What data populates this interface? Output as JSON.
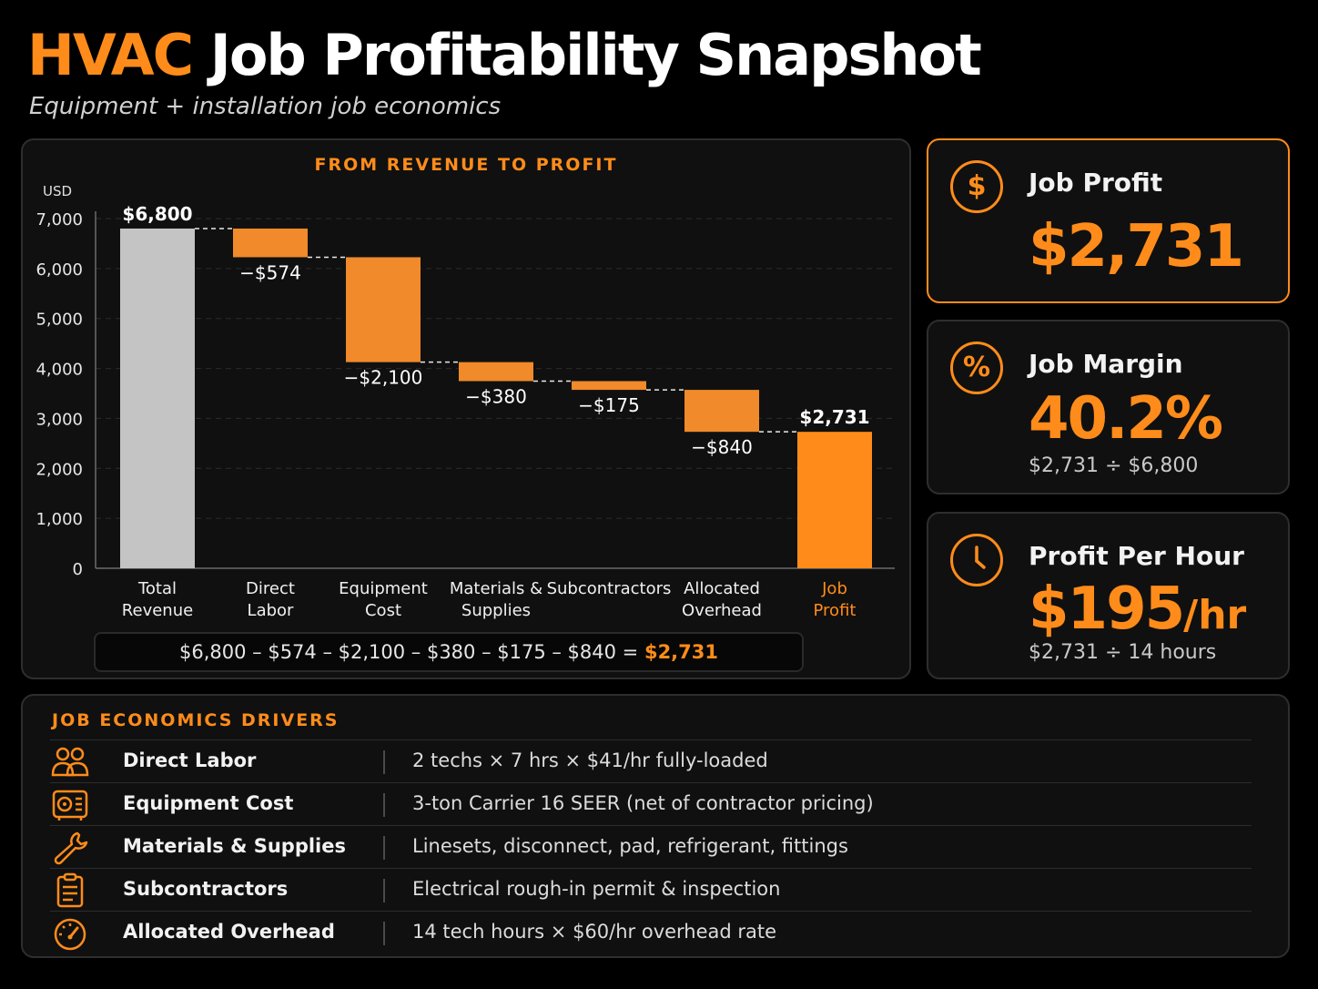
{
  "header": {
    "title_accent": "HVAC",
    "title_rest": "Job Profitability Snapshot",
    "subtitle": "Equipment + installation job economics"
  },
  "chart_data": {
    "type": "waterfall",
    "title": "FROM REVENUE TO PROFIT",
    "ylabel": "USD",
    "ylim": [
      0,
      7000
    ],
    "yticks": [
      0,
      1000,
      2000,
      3000,
      4000,
      5000,
      6000,
      7000
    ],
    "ytick_labels": [
      "0",
      "1,000",
      "2,000",
      "3,000",
      "4,000",
      "5,000",
      "6,000",
      "7,000"
    ],
    "grid": true,
    "steps": [
      {
        "category": [
          "Total",
          "Revenue"
        ],
        "kind": "total",
        "value": 6800,
        "label": "$6,800",
        "color": "#c4c4c4"
      },
      {
        "category": [
          "Direct",
          "Labor"
        ],
        "kind": "decrease",
        "value": -574,
        "label": "−$574",
        "color": "#f08a2a"
      },
      {
        "category": [
          "Equipment",
          "Cost"
        ],
        "kind": "decrease",
        "value": -2100,
        "label": "−$2,100",
        "color": "#f08a2a"
      },
      {
        "category": [
          "Materials &",
          "Supplies"
        ],
        "kind": "decrease",
        "value": -380,
        "label": "−$380",
        "color": "#f08a2a"
      },
      {
        "category": [
          "Subcontractors"
        ],
        "kind": "decrease",
        "value": -175,
        "label": "−$175",
        "color": "#f08a2a"
      },
      {
        "category": [
          "Allocated",
          "Overhead"
        ],
        "kind": "decrease",
        "value": -840,
        "label": "−$840",
        "color": "#f08a2a"
      },
      {
        "category": [
          "Job",
          "Profit"
        ],
        "kind": "total",
        "value": 2731,
        "label": "$2,731",
        "color": "#ff8c1a"
      }
    ],
    "formula": "$6,800  –  $574  –  $2,100  –  $380  –  $175  –  $840  =",
    "formula_result": "$2,731"
  },
  "kpis": {
    "profit": {
      "icon": "dollar-icon",
      "glyph": "$",
      "label": "Job Profit",
      "value": "$2,731"
    },
    "margin": {
      "icon": "percent-icon",
      "glyph": "%",
      "label": "Job Margin",
      "value": "40.2%",
      "sub": "$2,731 ÷ $6,800"
    },
    "hour": {
      "icon": "clock-icon",
      "label": "Profit Per Hour",
      "value": "$195",
      "unit": "/hr",
      "sub": "$2,731 ÷ 14 hours"
    }
  },
  "drivers": {
    "heading": "JOB ECONOMICS DRIVERS",
    "rows": [
      {
        "icon": "people-icon",
        "name": "Direct Labor",
        "desc": "2 techs × 7 hrs × $41/hr fully-loaded"
      },
      {
        "icon": "hvac-unit-icon",
        "name": "Equipment Cost",
        "desc": "3-ton Carrier 16 SEER (net of contractor pricing)"
      },
      {
        "icon": "wrench-icon",
        "name": "Materials & Supplies",
        "desc": "Linesets, disconnect, pad, refrigerant, fittings"
      },
      {
        "icon": "clipboard-icon",
        "name": "Subcontractors",
        "desc": "Electrical rough-in permit & inspection"
      },
      {
        "icon": "gauge-icon",
        "name": "Allocated Overhead",
        "desc": "14 tech hours × $60/hr overhead rate"
      }
    ]
  },
  "colors": {
    "accent": "#ff8c1a",
    "bar_decrease": "#f08a2a",
    "bar_total": "#c4c4c4"
  }
}
